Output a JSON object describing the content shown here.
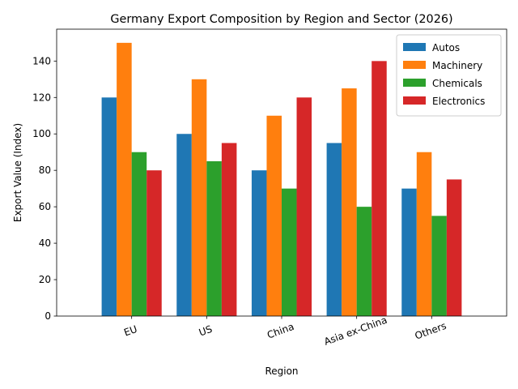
{
  "chart_data": {
    "type": "bar",
    "title": "Germany Export Composition by Region and Sector (2026)",
    "xlabel": "Region",
    "ylabel": "Export Value (Index)",
    "ylim": [
      0,
      157.5
    ],
    "yticks": [
      0,
      20,
      40,
      60,
      80,
      100,
      120,
      140
    ],
    "categories": [
      "EU",
      "US",
      "China",
      "Asia ex-China",
      "Others"
    ],
    "xtick_rotation_deg": 20,
    "legend_position": "upper-right",
    "grid": false,
    "series": [
      {
        "name": "Autos",
        "color": "#1f77b4",
        "values": [
          120,
          100,
          80,
          95,
          70
        ]
      },
      {
        "name": "Machinery",
        "color": "#ff7f0e",
        "values": [
          150,
          130,
          110,
          125,
          90
        ]
      },
      {
        "name": "Chemicals",
        "color": "#2ca02c",
        "values": [
          90,
          85,
          70,
          60,
          55
        ]
      },
      {
        "name": "Electronics",
        "color": "#d62728",
        "values": [
          80,
          95,
          120,
          140,
          75
        ]
      }
    ]
  }
}
